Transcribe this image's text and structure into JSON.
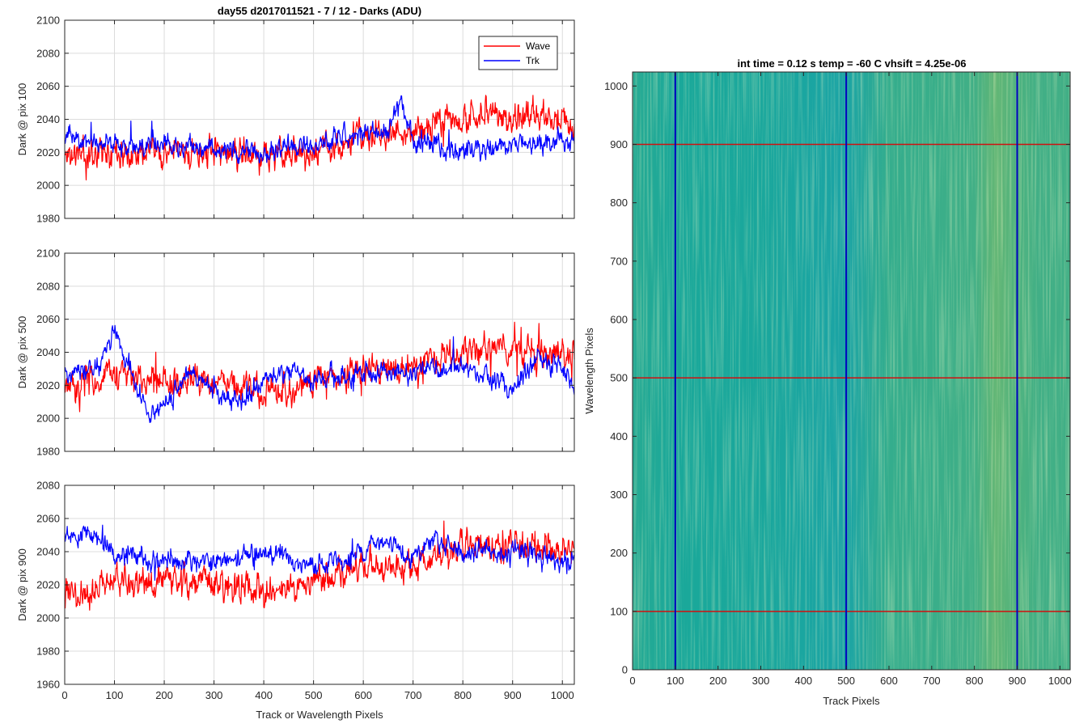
{
  "chart_data": [
    {
      "type": "line",
      "title": "day55 d2017011521 - 7 / 12 - Darks (ADU)",
      "ylabel": "Dark @ pix 100",
      "xlabel": "",
      "xlim": [
        0,
        1024
      ],
      "ylim": [
        1980,
        2100
      ],
      "xticks": [
        0,
        100,
        200,
        300,
        400,
        500,
        600,
        700,
        800,
        900,
        1000
      ],
      "yticks": [
        1980,
        2000,
        2020,
        2040,
        2060,
        2080,
        2100
      ],
      "grid": true,
      "legend": {
        "placement": "top-right",
        "entries": [
          "Wave",
          "Trk"
        ]
      },
      "series": [
        {
          "name": "Wave",
          "color": "#ff0000",
          "profile": [
            [
              0,
              2018
            ],
            [
              100,
              2022
            ],
            [
              200,
              2020
            ],
            [
              300,
              2020
            ],
            [
              400,
              2018
            ],
            [
              500,
              2020
            ],
            [
              600,
              2030
            ],
            [
              650,
              2030
            ],
            [
              700,
              2034
            ],
            [
              800,
              2040
            ],
            [
              900,
              2042
            ],
            [
              1000,
              2038
            ],
            [
              1024,
              2038
            ]
          ],
          "noise": 9,
          "seed": 11
        },
        {
          "name": "Trk",
          "color": "#0000ff",
          "profile": [
            [
              0,
              2030
            ],
            [
              100,
              2025
            ],
            [
              200,
              2024
            ],
            [
              300,
              2022
            ],
            [
              400,
              2022
            ],
            [
              500,
              2024
            ],
            [
              600,
              2032
            ],
            [
              650,
              2034
            ],
            [
              675,
              2050
            ],
            [
              700,
              2028
            ],
            [
              800,
              2020
            ],
            [
              900,
              2024
            ],
            [
              1000,
              2026
            ],
            [
              1024,
              2026
            ]
          ],
          "noise": 6,
          "seed": 23
        }
      ]
    },
    {
      "type": "line",
      "title": "",
      "ylabel": "Dark @ pix 500",
      "xlabel": "",
      "xlim": [
        0,
        1024
      ],
      "ylim": [
        1980,
        2100
      ],
      "xticks": [
        0,
        100,
        200,
        300,
        400,
        500,
        600,
        700,
        800,
        900,
        1000
      ],
      "yticks": [
        1980,
        2000,
        2020,
        2040,
        2060,
        2080,
        2100
      ],
      "grid": true,
      "series": [
        {
          "name": "Wave",
          "color": "#ff0000",
          "profile": [
            [
              0,
              2020
            ],
            [
              100,
              2025
            ],
            [
              200,
              2022
            ],
            [
              300,
              2022
            ],
            [
              400,
              2018
            ],
            [
              500,
              2022
            ],
            [
              600,
              2030
            ],
            [
              700,
              2030
            ],
            [
              800,
              2040
            ],
            [
              900,
              2042
            ],
            [
              1000,
              2038
            ],
            [
              1024,
              2040
            ]
          ],
          "noise": 9,
          "seed": 37
        },
        {
          "name": "Trk",
          "color": "#0000ff",
          "profile": [
            [
              0,
              2025
            ],
            [
              60,
              2030
            ],
            [
              100,
              2050
            ],
            [
              130,
              2030
            ],
            [
              170,
              2000
            ],
            [
              200,
              2008
            ],
            [
              250,
              2028
            ],
            [
              300,
              2018
            ],
            [
              350,
              2010
            ],
            [
              400,
              2022
            ],
            [
              450,
              2030
            ],
            [
              500,
              2024
            ],
            [
              600,
              2028
            ],
            [
              700,
              2028
            ],
            [
              800,
              2032
            ],
            [
              900,
              2018
            ],
            [
              950,
              2034
            ],
            [
              1000,
              2030
            ],
            [
              1024,
              2020
            ]
          ],
          "noise": 6,
          "seed": 41
        }
      ]
    },
    {
      "type": "line",
      "title": "",
      "ylabel": "Dark @ pix 900",
      "xlabel": "Track or Wavelength Pixels",
      "xlim": [
        0,
        1024
      ],
      "ylim": [
        1960,
        2080
      ],
      "xticks": [
        0,
        100,
        200,
        300,
        400,
        500,
        600,
        700,
        800,
        900,
        1000
      ],
      "yticks": [
        1960,
        1980,
        2000,
        2020,
        2040,
        2060,
        2080
      ],
      "grid": true,
      "series": [
        {
          "name": "Wave",
          "color": "#ff0000",
          "profile": [
            [
              0,
              2015
            ],
            [
              100,
              2022
            ],
            [
              200,
              2022
            ],
            [
              300,
              2020
            ],
            [
              400,
              2016
            ],
            [
              500,
              2022
            ],
            [
              600,
              2030
            ],
            [
              700,
              2032
            ],
            [
              800,
              2040
            ],
            [
              900,
              2044
            ],
            [
              1000,
              2040
            ],
            [
              1024,
              2040
            ]
          ],
          "noise": 9,
          "seed": 53
        },
        {
          "name": "Trk",
          "color": "#0000ff",
          "profile": [
            [
              0,
              2048
            ],
            [
              50,
              2050
            ],
            [
              100,
              2038
            ],
            [
              200,
              2034
            ],
            [
              300,
              2034
            ],
            [
              400,
              2040
            ],
            [
              500,
              2030
            ],
            [
              600,
              2040
            ],
            [
              650,
              2048
            ],
            [
              700,
              2036
            ],
            [
              750,
              2046
            ],
            [
              800,
              2040
            ],
            [
              900,
              2040
            ],
            [
              1000,
              2036
            ],
            [
              1024,
              2034
            ]
          ],
          "noise": 6,
          "seed": 61
        }
      ]
    },
    {
      "type": "heatmap",
      "title": "int time = 0.12 s    temp = -60 C    vhsift = 4.25e-06",
      "xlabel": "Track Pixels",
      "ylabel": "Wavelength Pixels",
      "xlim": [
        0,
        1024
      ],
      "ylim": [
        0,
        1024
      ],
      "xticks": [
        0,
        100,
        200,
        300,
        400,
        500,
        600,
        700,
        800,
        900,
        1000
      ],
      "yticks": [
        0,
        100,
        200,
        300,
        400,
        500,
        600,
        700,
        800,
        900,
        1000
      ],
      "colors": {
        "low": "#1f97c4",
        "mid": "#1aa89a",
        "high": "#b5c54a"
      },
      "intensity_profile": [
        [
          0,
          0.45
        ],
        [
          100,
          0.4
        ],
        [
          300,
          0.38
        ],
        [
          500,
          0.3
        ],
        [
          600,
          0.5
        ],
        [
          700,
          0.52
        ],
        [
          800,
          0.55
        ],
        [
          850,
          0.68
        ],
        [
          900,
          0.6
        ],
        [
          950,
          0.55
        ],
        [
          1024,
          0.55
        ]
      ],
      "vertical_lines": {
        "color": "#0000c0",
        "x": [
          100,
          500,
          900
        ]
      },
      "horizontal_lines": {
        "color": "#d01010",
        "y": [
          100,
          500,
          900
        ]
      }
    }
  ]
}
